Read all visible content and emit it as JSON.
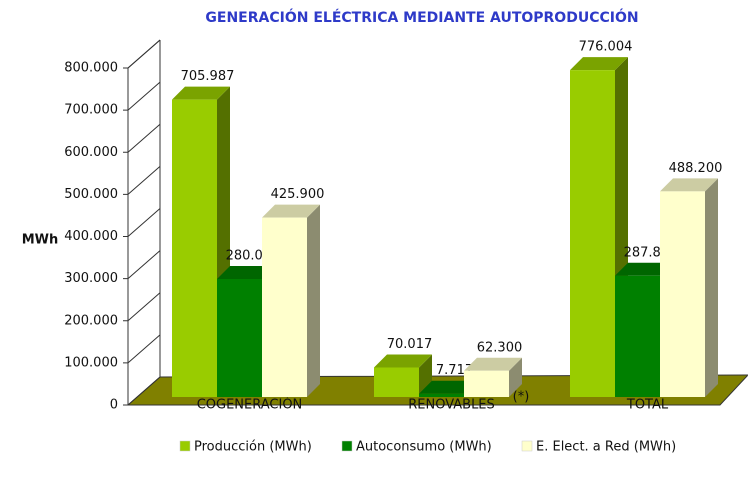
{
  "chart_data": {
    "type": "bar3d",
    "title": "GENERACIÓN ELÉCTRICA MEDIANTE AUTOPRODUCCIÓN",
    "ylabel": "MWh",
    "annotation": "(*)",
    "categories": [
      "COGENERACIÓN",
      "RENOVABLES",
      "TOTAL"
    ],
    "series": [
      {
        "name": "Producción (MWh)",
        "color": "#99cc00",
        "values": [
          705987,
          70017,
          776004
        ],
        "value_labels": [
          "705.987",
          "70.017",
          "776.004"
        ]
      },
      {
        "name": "Autoconsumo (MWh)",
        "color": "#008000",
        "values": [
          280087,
          7717,
          287804
        ],
        "value_labels": [
          "280.087",
          "7.717",
          "287.804"
        ]
      },
      {
        "name": "E. Elect. a Red (MWh)",
        "color": "#ffffcc",
        "values": [
          425900,
          62300,
          488200
        ],
        "value_labels": [
          "425.900",
          "62.300",
          "488.200"
        ]
      }
    ],
    "ylim": [
      0,
      800000
    ],
    "yticks": [
      0,
      {
        "value": 100000,
        "label": "100.000"
      },
      {
        "value": 200000,
        "label": "200.000"
      },
      {
        "value": 300000,
        "label": "300.000"
      },
      {
        "value": 400000,
        "label": "400.000"
      },
      {
        "value": 500000,
        "label": "500.000"
      },
      {
        "value": 600000,
        "label": "600.000"
      },
      {
        "value": 700000,
        "label": "700.000"
      },
      {
        "value": 800000,
        "label": "800.000"
      }
    ],
    "legend": "bottom"
  }
}
